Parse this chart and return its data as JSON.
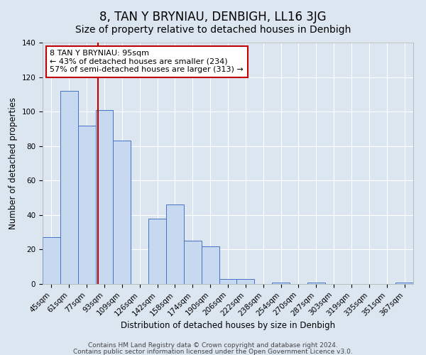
{
  "title": "8, TAN Y BRYNIAU, DENBIGH, LL16 3JG",
  "subtitle": "Size of property relative to detached houses in Denbigh",
  "xlabel": "Distribution of detached houses by size in Denbigh",
  "ylabel": "Number of detached properties",
  "categories": [
    "45sqm",
    "61sqm",
    "77sqm",
    "93sqm",
    "109sqm",
    "126sqm",
    "142sqm",
    "158sqm",
    "174sqm",
    "190sqm",
    "206sqm",
    "222sqm",
    "238sqm",
    "254sqm",
    "270sqm",
    "287sqm",
    "303sqm",
    "319sqm",
    "335sqm",
    "351sqm",
    "367sqm"
  ],
  "values": [
    27,
    112,
    92,
    101,
    83,
    0,
    38,
    46,
    25,
    22,
    3,
    3,
    0,
    1,
    0,
    1,
    0,
    0,
    0,
    0,
    1
  ],
  "bar_color": "#c6d9f0",
  "bar_edge_color": "#4472c4",
  "highlight_line_color": "#c00000",
  "annotation_line1": "8 TAN Y BRYNIAU: 95sqm",
  "annotation_line2": "← 43% of detached houses are smaller (234)",
  "annotation_line3": "57% of semi-detached houses are larger (313) →",
  "annotation_box_color": "#ffffff",
  "annotation_box_edge_color": "#c00000",
  "ylim": [
    0,
    140
  ],
  "yticks": [
    0,
    20,
    40,
    60,
    80,
    100,
    120,
    140
  ],
  "footer1": "Contains HM Land Registry data © Crown copyright and database right 2024.",
  "footer2": "Contains public sector information licensed under the Open Government Licence v3.0.",
  "background_color": "#dce6f1",
  "plot_background_color": "#dce6f1",
  "grid_color": "#ffffff",
  "title_fontsize": 12,
  "subtitle_fontsize": 10,
  "axis_label_fontsize": 8.5,
  "tick_fontsize": 7.5,
  "annotation_fontsize": 8,
  "footer_fontsize": 6.5,
  "red_line_bar_index": 2.625
}
